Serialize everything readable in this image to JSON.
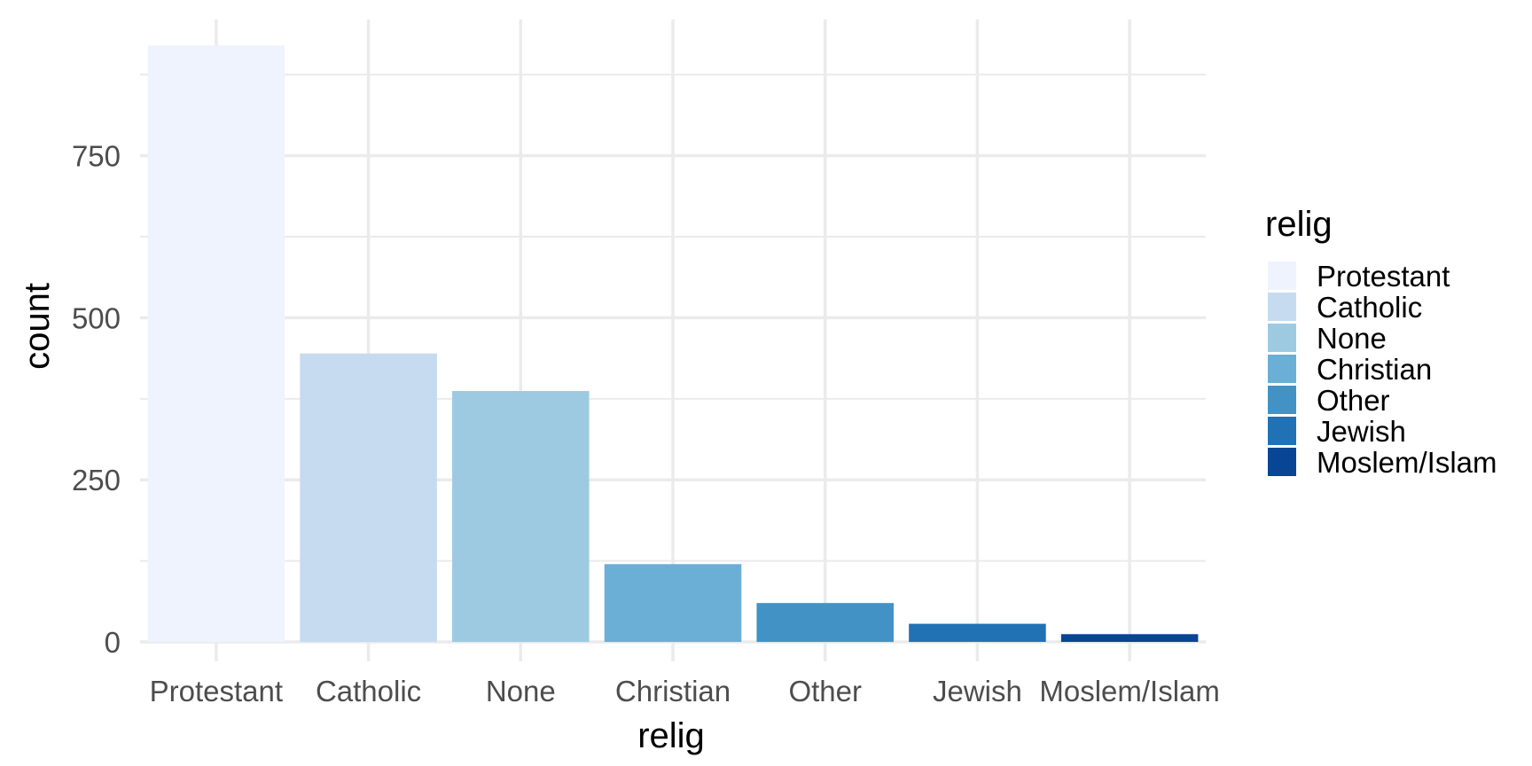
{
  "chart_data": {
    "type": "bar",
    "categories": [
      "Protestant",
      "Catholic",
      "None",
      "Christian",
      "Other",
      "Jewish",
      "Moslem/Islam"
    ],
    "values": [
      920,
      445,
      387,
      120,
      60,
      28,
      12
    ],
    "colors": [
      "#eef3fe",
      "#c6dbef",
      "#9ecae1",
      "#6baed6",
      "#4292c6",
      "#2171b5",
      "#084594"
    ],
    "xlabel": "relig",
    "ylabel": "count",
    "yticks": [
      0,
      250,
      500,
      750
    ],
    "ylim": [
      -30,
      960
    ],
    "grid": true,
    "legend": {
      "title": "relig",
      "placement": "right",
      "items": [
        "Protestant",
        "Catholic",
        "None",
        "Christian",
        "Other",
        "Jewish",
        "Moslem/Islam"
      ]
    }
  }
}
